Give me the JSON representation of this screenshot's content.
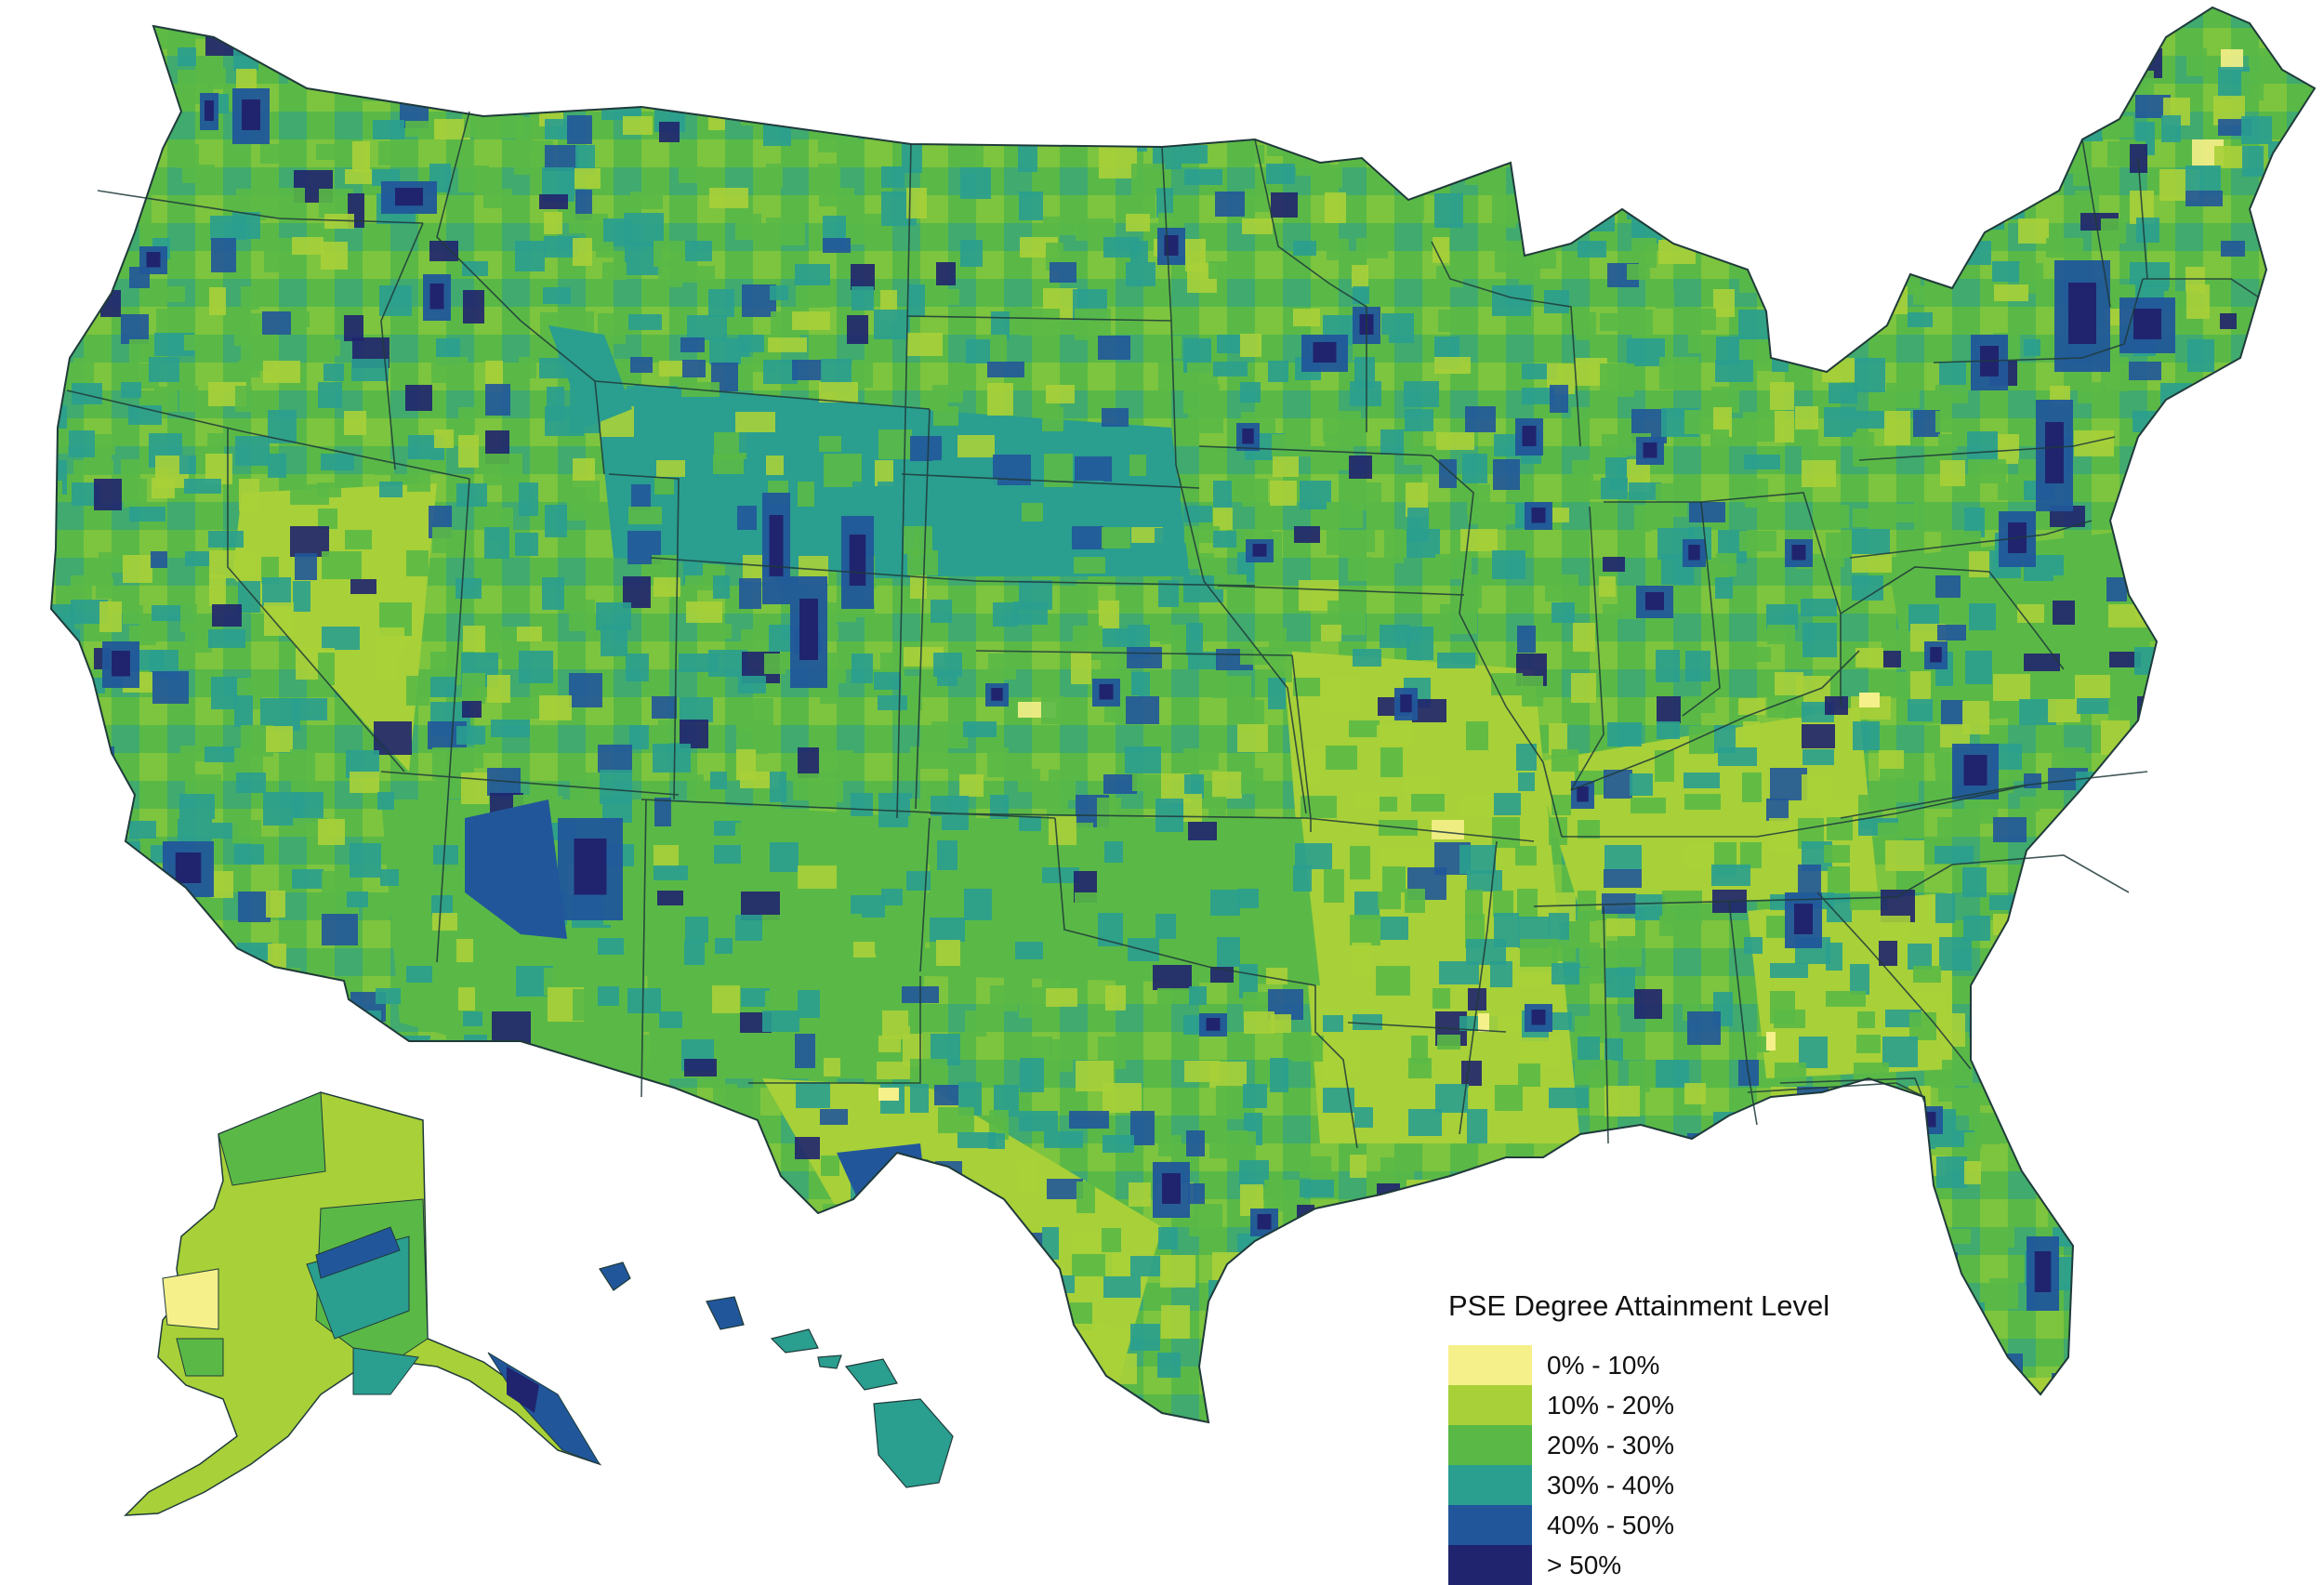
{
  "legend": {
    "title": "PSE Degree Attainment Level",
    "classes": [
      {
        "label": "0% - 10%",
        "color": "#f5f08a"
      },
      {
        "label": "10% - 20%",
        "color": "#a8d038"
      },
      {
        "label": "20% - 30%",
        "color": "#5ab946"
      },
      {
        "label": "30% - 40%",
        "color": "#2a9e8f"
      },
      {
        "label": "40% - 50%",
        "color": "#21579a"
      },
      {
        "label": "> 50%",
        "color": "#20246e"
      }
    ]
  },
  "colors": {
    "border": "#1f3a3a",
    "background": "#ffffff"
  }
}
